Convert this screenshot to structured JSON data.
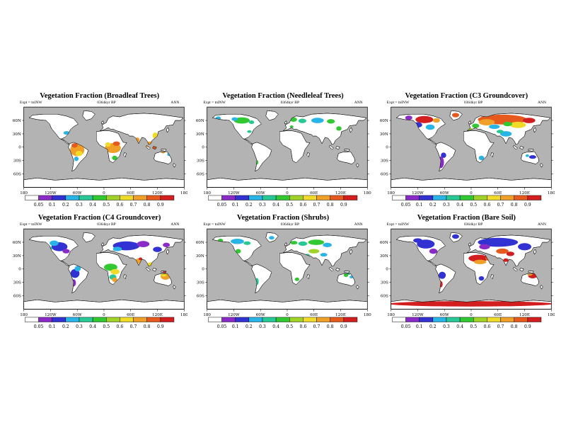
{
  "figure": {
    "colors": {
      "ocean": "#b3b3b3",
      "land": "#ffffff",
      "coast": "#000000",
      "frame": "#000000"
    },
    "axes": {
      "lat_ticks": [
        "60N",
        "30N",
        "0",
        "30S",
        "60S"
      ],
      "lat_pos": [
        30,
        60,
        90,
        120,
        150
      ],
      "lon_ticks": [
        "180",
        "120W",
        "60W",
        "0",
        "60E",
        "120E",
        "180"
      ],
      "lon_pos": [
        0,
        60,
        120,
        180,
        240,
        300,
        360
      ]
    },
    "colorbar": {
      "colors": [
        "#ffffff",
        "#8a2bc8",
        "#3232d2",
        "#28b4e6",
        "#28c896",
        "#32c832",
        "#a0d228",
        "#f0dc28",
        "#f0a028",
        "#e65a1e",
        "#d21e1e"
      ],
      "labels": [
        "0.05",
        "0.1",
        "0.2",
        "0.3",
        "0.4",
        "0.5",
        "0.6",
        "0.7",
        "0.8",
        "0.9"
      ]
    },
    "panels": [
      {
        "title": "Vegetation Fraction (Broadleaf Trees)",
        "expt": "Expt = tnINW",
        "subtitle": "0364kyr BP",
        "season": "ANN",
        "blobs": [
          [
            120,
            96,
            16,
            14,
            "#f0a028"
          ],
          [
            114,
            86,
            7,
            5,
            "#e65a1e"
          ],
          [
            124,
            104,
            8,
            6,
            "#f0dc28"
          ],
          [
            118,
            116,
            5,
            5,
            "#28b4e6"
          ],
          [
            200,
            92,
            18,
            11,
            "#f0a028"
          ],
          [
            208,
            82,
            8,
            5,
            "#e65a1e"
          ],
          [
            189,
            84,
            6,
            5,
            "#f0dc28"
          ],
          [
            204,
            114,
            6,
            5,
            "#32c832"
          ],
          [
            255,
            74,
            5,
            6,
            "#f0a028"
          ],
          [
            285,
            84,
            13,
            7,
            "#f0a028"
          ],
          [
            299,
            92,
            13,
            5,
            "#e65a1e"
          ],
          [
            295,
            64,
            6,
            7,
            "#f0dc28"
          ],
          [
            96,
            58,
            7,
            4,
            "#28b4e6"
          ],
          [
            313,
            101,
            4,
            3,
            "#f0a028"
          ],
          [
            326,
            106,
            4,
            4,
            "#28b4e6"
          ]
        ]
      },
      {
        "title": "Vegetation Fraction (Needleleaf Trees)",
        "expt": "Expt = tnINW",
        "subtitle": "0364kyr BP",
        "season": "ANN",
        "blobs": [
          [
            78,
            30,
            18,
            7,
            "#32c832"
          ],
          [
            62,
            27,
            7,
            4,
            "#28b4e6"
          ],
          [
            25,
            25,
            6,
            4,
            "#28b4e6"
          ],
          [
            100,
            34,
            6,
            4,
            "#28c896"
          ],
          [
            194,
            28,
            8,
            5,
            "#32c832"
          ],
          [
            214,
            31,
            9,
            5,
            "#28c896"
          ],
          [
            248,
            30,
            14,
            6,
            "#28b4e6"
          ],
          [
            278,
            32,
            9,
            5,
            "#32c832"
          ],
          [
            296,
            48,
            6,
            5,
            "#32c832"
          ],
          [
            95,
            55,
            5,
            3,
            "#28c896"
          ],
          [
            112,
            124,
            3,
            5,
            "#32c832"
          ],
          [
            190,
            44,
            4,
            3,
            "#32c832"
          ]
        ]
      },
      {
        "title": "Vegetation Fraction (C3 Groundcover)",
        "expt": "Expt = tnINW",
        "subtitle": "0364kyr BP",
        "season": "ANN",
        "blobs": [
          [
            250,
            28,
            55,
            11,
            "#e65a1e"
          ],
          [
            215,
            34,
            18,
            7,
            "#f0a028"
          ],
          [
            285,
            40,
            18,
            7,
            "#f0dc28"
          ],
          [
            232,
            44,
            12,
            5,
            "#28b4e6"
          ],
          [
            262,
            38,
            10,
            5,
            "#32c832"
          ],
          [
            310,
            30,
            14,
            6,
            "#d21e1e"
          ],
          [
            75,
            28,
            20,
            8,
            "#d21e1e"
          ],
          [
            60,
            40,
            10,
            6,
            "#3232d2"
          ],
          [
            88,
            45,
            10,
            6,
            "#28b4e6"
          ],
          [
            102,
            30,
            8,
            5,
            "#f0a028"
          ],
          [
            40,
            24,
            8,
            5,
            "#8a2bc8"
          ],
          [
            145,
            18,
            8,
            5,
            "#e65a1e"
          ],
          [
            258,
            60,
            13,
            6,
            "#28b4e6"
          ],
          [
            245,
            55,
            8,
            4,
            "#28c896"
          ],
          [
            112,
            124,
            7,
            13,
            "#8a2bc8"
          ],
          [
            118,
            108,
            6,
            6,
            "#3232d2"
          ],
          [
            203,
            114,
            6,
            5,
            "#28b4e6"
          ],
          [
            318,
            112,
            8,
            4,
            "#3232d2"
          ],
          [
            306,
            109,
            4,
            3,
            "#28b4e6"
          ],
          [
            190,
            42,
            8,
            5,
            "#32c832"
          ],
          [
            178,
            50,
            5,
            3,
            "#a0d228"
          ]
        ]
      },
      {
        "title": "Vegetation Fraction (C4 Groundcover)",
        "expt": "Expt = tnINW",
        "subtitle": "0364kyr BP",
        "season": "ANN",
        "blobs": [
          [
            80,
            40,
            18,
            10,
            "#3232d2"
          ],
          [
            68,
            32,
            10,
            6,
            "#28b4e6"
          ],
          [
            95,
            50,
            8,
            5,
            "#8a2bc8"
          ],
          [
            58,
            44,
            6,
            4,
            "#28c896"
          ],
          [
            230,
            38,
            30,
            10,
            "#3232d2"
          ],
          [
            268,
            34,
            14,
            7,
            "#8a2bc8"
          ],
          [
            210,
            45,
            10,
            5,
            "#28b4e6"
          ],
          [
            300,
            46,
            10,
            6,
            "#3232d2"
          ],
          [
            320,
            36,
            8,
            5,
            "#8a2bc8"
          ],
          [
            195,
            86,
            15,
            8,
            "#32c832"
          ],
          [
            205,
            96,
            10,
            6,
            "#f0dc28"
          ],
          [
            200,
            108,
            8,
            6,
            "#28c896"
          ],
          [
            204,
            114,
            6,
            5,
            "#f0a028"
          ],
          [
            258,
            72,
            8,
            6,
            "#f0a028"
          ],
          [
            262,
            67,
            4,
            3,
            "#d21e1e"
          ],
          [
            285,
            80,
            8,
            5,
            "#f0dc28"
          ],
          [
            318,
            106,
            11,
            8,
            "#f0a028"
          ],
          [
            314,
            103,
            6,
            4,
            "#f0dc28"
          ],
          [
            316,
            98,
            5,
            3,
            "#d21e1e"
          ],
          [
            115,
            100,
            10,
            10,
            "#3232d2"
          ],
          [
            121,
            89,
            7,
            6,
            "#28b4e6"
          ],
          [
            112,
            121,
            5,
            8,
            "#8a2bc8"
          ]
        ]
      },
      {
        "title": "Vegetation Fraction (Shrubs)",
        "expt": "Expt = tnINW",
        "subtitle": "0364kyr BP",
        "season": "ANN",
        "blobs": [
          [
            68,
            28,
            15,
            6,
            "#28b4e6"
          ],
          [
            90,
            32,
            8,
            4,
            "#28c896"
          ],
          [
            30,
            26,
            6,
            4,
            "#32c832"
          ],
          [
            145,
            20,
            6,
            4,
            "#28b4e6"
          ],
          [
            195,
            31,
            8,
            4,
            "#32c832"
          ],
          [
            215,
            33,
            10,
            5,
            "#28c896"
          ],
          [
            245,
            30,
            18,
            6,
            "#32c832"
          ],
          [
            270,
            36,
            10,
            5,
            "#28b4e6"
          ],
          [
            240,
            50,
            12,
            5,
            "#a0d228"
          ],
          [
            262,
            58,
            8,
            4,
            "#28b4e6"
          ],
          [
            225,
            60,
            6,
            4,
            "#28c896"
          ],
          [
            70,
            50,
            6,
            5,
            "#32c832"
          ],
          [
            112,
            118,
            4,
            8,
            "#28c896"
          ],
          [
            202,
            113,
            5,
            4,
            "#32c832"
          ],
          [
            312,
            104,
            5,
            4,
            "#32c832"
          ],
          [
            324,
            108,
            4,
            3,
            "#28b4e6"
          ],
          [
            318,
            100,
            4,
            3,
            "#28c896"
          ]
        ]
      },
      {
        "title": "Vegetation Fraction (Bare Soil)",
        "expt": "Expt = tnINW",
        "subtitle": "0364kyr BP",
        "season": "ANN",
        "blobs": [
          [
            78,
            34,
            20,
            10,
            "#3232d2"
          ],
          [
            95,
            50,
            9,
            6,
            "#8a2bc8"
          ],
          [
            60,
            26,
            10,
            5,
            "#3232d2"
          ],
          [
            145,
            17,
            8,
            5,
            "#3232d2"
          ],
          [
            240,
            30,
            45,
            10,
            "#3232d2"
          ],
          [
            210,
            40,
            12,
            6,
            "#8a2bc8"
          ],
          [
            300,
            40,
            15,
            8,
            "#3232d2"
          ],
          [
            196,
            66,
            22,
            8,
            "#d21e1e"
          ],
          [
            222,
            66,
            10,
            6,
            "#e65a1e"
          ],
          [
            200,
            74,
            14,
            5,
            "#f0a028"
          ],
          [
            250,
            50,
            14,
            6,
            "#e65a1e"
          ],
          [
            268,
            56,
            9,
            5,
            "#d21e1e"
          ],
          [
            258,
            70,
            6,
            4,
            "#d21e1e"
          ],
          [
            318,
            105,
            10,
            6,
            "#d21e1e"
          ],
          [
            312,
            101,
            6,
            4,
            "#f0a028"
          ],
          [
            115,
            104,
            8,
            8,
            "#3232d2"
          ],
          [
            112,
            124,
            4,
            7,
            "#d21e1e"
          ],
          [
            203,
            111,
            6,
            5,
            "#3232d2"
          ],
          [
            180,
            168,
            185,
            6,
            "#d21e1e"
          ]
        ]
      }
    ]
  },
  "chart_data": [
    {
      "type": "heatmap",
      "title": "Vegetation Fraction (Broadleaf Trees)",
      "experiment": "tnINW",
      "season": "ANN",
      "age_label": "0364kyr BP",
      "units": "fraction",
      "levels": [
        0.05,
        0.1,
        0.2,
        0.3,
        0.4,
        0.5,
        0.6,
        0.7,
        0.8,
        0.9
      ],
      "lon_ticks": [
        "180",
        "120W",
        "60W",
        "0",
        "60E",
        "120E",
        "180"
      ],
      "lat_ticks": [
        "60N",
        "30N",
        "0",
        "30S",
        "60S"
      ],
      "summary": "High fractions (0.6-0.9) over Amazonia, equatorial Africa and Southeast Asia/Indonesia; moderate patches in SE North America, India and NE Australia."
    },
    {
      "type": "heatmap",
      "title": "Vegetation Fraction (Needleleaf Trees)",
      "experiment": "tnINW",
      "season": "ANN",
      "age_label": "0364kyr BP",
      "units": "fraction",
      "levels": [
        0.05,
        0.1,
        0.2,
        0.3,
        0.4,
        0.5,
        0.6,
        0.7,
        0.8,
        0.9
      ],
      "lon_ticks": [
        "180",
        "120W",
        "60W",
        "0",
        "60E",
        "120E",
        "180"
      ],
      "lat_ticks": [
        "60N",
        "30N",
        "0",
        "30S",
        "60S"
      ],
      "summary": "Moderate fractions (0.2-0.5) across boreal Canada, Alaska, Scandinavia and Siberia; small scattered patches elsewhere."
    },
    {
      "type": "heatmap",
      "title": "Vegetation Fraction (C3 Groundcover)",
      "experiment": "tnINW",
      "season": "ANN",
      "age_label": "0364kyr BP",
      "units": "fraction",
      "levels": [
        0.05,
        0.1,
        0.2,
        0.3,
        0.4,
        0.5,
        0.6,
        0.7,
        0.8,
        0.9
      ],
      "lon_ticks": [
        "180",
        "120W",
        "60W",
        "0",
        "60E",
        "120E",
        "180"
      ],
      "lat_ticks": [
        "60N",
        "30N",
        "0",
        "30S",
        "60S"
      ],
      "summary": "High fractions (0.6-0.9) across northern Eurasia and high-latitude North America; moderate-to-low values in Patagonia, southern Africa and southern Australia."
    },
    {
      "type": "heatmap",
      "title": "Vegetation Fraction (C4 Groundcover)",
      "experiment": "tnINW",
      "season": "ANN",
      "age_label": "0364kyr BP",
      "units": "fraction",
      "levels": [
        0.05,
        0.1,
        0.2,
        0.3,
        0.4,
        0.5,
        0.6,
        0.7,
        0.8,
        0.9
      ],
      "lon_ticks": [
        "180",
        "120W",
        "60W",
        "0",
        "60E",
        "120E",
        "180"
      ],
      "lat_ticks": [
        "60N",
        "30N",
        "0",
        "30S",
        "60S"
      ],
      "summary": "Widespread low fractions (0.05-0.2) over northern continents; moderate-to-high values over tropical Africa, India, Southeast Asia and Australia."
    },
    {
      "type": "heatmap",
      "title": "Vegetation Fraction (Shrubs)",
      "experiment": "tnINW",
      "season": "ANN",
      "age_label": "0364kyr BP",
      "units": "fraction",
      "levels": [
        0.05,
        0.1,
        0.2,
        0.3,
        0.4,
        0.5,
        0.6,
        0.7,
        0.8,
        0.9
      ],
      "lon_ticks": [
        "180",
        "120W",
        "60W",
        "0",
        "60E",
        "120E",
        "180"
      ],
      "lat_ticks": [
        "60N",
        "30N",
        "0",
        "30S",
        "60S"
      ],
      "summary": "Low-to-moderate fractions (0.1-0.4) over tundra and mid-latitude semi-arid regions of North America, central Eurasia, southern Africa and Australia."
    },
    {
      "type": "heatmap",
      "title": "Vegetation Fraction (Bare Soil)",
      "experiment": "tnINW",
      "season": "ANN",
      "age_label": "0364kyr BP",
      "units": "fraction",
      "levels": [
        0.05,
        0.1,
        0.2,
        0.3,
        0.4,
        0.5,
        0.6,
        0.7,
        0.8,
        0.9
      ],
      "lon_ticks": [
        "180",
        "120W",
        "60W",
        "0",
        "60E",
        "120E",
        "180"
      ],
      "lat_ticks": [
        "60N",
        "30N",
        "0",
        "30S",
        "60S"
      ],
      "summary": "High fractions (0.8-0.9) over the Sahara, Arabia, central Asian deserts, Australia interior and Antarctica; low fractions with blue/purple patches over most vegetated land."
    }
  ]
}
